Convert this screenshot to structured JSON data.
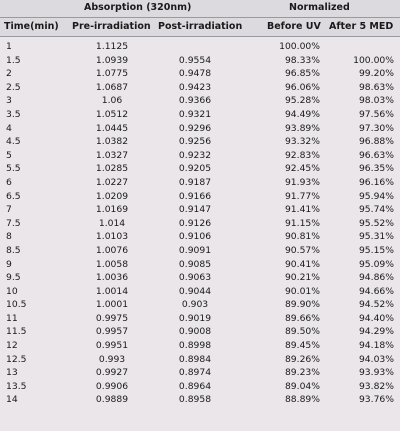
{
  "header": {
    "group_absorption": "Absorption (320nm)",
    "group_normalized": "Normalized",
    "col_time": "Time(min)",
    "col_pre": "Pre-irradiation",
    "col_post": "Post-irradiation",
    "col_before": "Before UV",
    "col_after": "After 5 MED"
  },
  "rows": [
    {
      "time": "1",
      "pre": "1.1125",
      "post": "",
      "before": "100.00%",
      "after": ""
    },
    {
      "time": "1.5",
      "pre": "1.0939",
      "post": "0.9554",
      "before": "98.33%",
      "after": "100.00%"
    },
    {
      "time": "2",
      "pre": "1.0775",
      "post": "0.9478",
      "before": "96.85%",
      "after": "99.20%"
    },
    {
      "time": "2.5",
      "pre": "1.0687",
      "post": "0.9423",
      "before": "96.06%",
      "after": "98.63%"
    },
    {
      "time": "3",
      "pre": "1.06",
      "post": "0.9366",
      "before": "95.28%",
      "after": "98.03%"
    },
    {
      "time": "3.5",
      "pre": "1.0512",
      "post": "0.9321",
      "before": "94.49%",
      "after": "97.56%"
    },
    {
      "time": "4",
      "pre": "1.0445",
      "post": "0.9296",
      "before": "93.89%",
      "after": "97.30%"
    },
    {
      "time": "4.5",
      "pre": "1.0382",
      "post": "0.9256",
      "before": "93.32%",
      "after": "96.88%"
    },
    {
      "time": "5",
      "pre": "1.0327",
      "post": "0.9232",
      "before": "92.83%",
      "after": "96.63%"
    },
    {
      "time": "5.5",
      "pre": "1.0285",
      "post": "0.9205",
      "before": "92.45%",
      "after": "96.35%"
    },
    {
      "time": "6",
      "pre": "1.0227",
      "post": "0.9187",
      "before": "91.93%",
      "after": "96.16%"
    },
    {
      "time": "6.5",
      "pre": "1.0209",
      "post": "0.9166",
      "before": "91.77%",
      "after": "95.94%"
    },
    {
      "time": "7",
      "pre": "1.0169",
      "post": "0.9147",
      "before": "91.41%",
      "after": "95.74%"
    },
    {
      "time": "7.5",
      "pre": "1.014",
      "post": "0.9126",
      "before": "91.15%",
      "after": "95.52%"
    },
    {
      "time": "8",
      "pre": "1.0103",
      "post": "0.9106",
      "before": "90.81%",
      "after": "95.31%"
    },
    {
      "time": "8.5",
      "pre": "1.0076",
      "post": "0.9091",
      "before": "90.57%",
      "after": "95.15%"
    },
    {
      "time": "9",
      "pre": "1.0058",
      "post": "0.9085",
      "before": "90.41%",
      "after": "95.09%"
    },
    {
      "time": "9.5",
      "pre": "1.0036",
      "post": "0.9063",
      "before": "90.21%",
      "after": "94.86%"
    },
    {
      "time": "10",
      "pre": "1.0014",
      "post": "0.9044",
      "before": "90.01%",
      "after": "94.66%"
    },
    {
      "time": "10.5",
      "pre": "1.0001",
      "post": "0.903",
      "before": "89.90%",
      "after": "94.52%"
    },
    {
      "time": "11",
      "pre": "0.9975",
      "post": "0.9019",
      "before": "89.66%",
      "after": "94.40%"
    },
    {
      "time": "11.5",
      "pre": "0.9957",
      "post": "0.9008",
      "before": "89.50%",
      "after": "94.29%"
    },
    {
      "time": "12",
      "pre": "0.9951",
      "post": "0.8998",
      "before": "89.45%",
      "after": "94.18%"
    },
    {
      "time": "12.5",
      "pre": "0.993",
      "post": "0.8984",
      "before": "89.26%",
      "after": "94.03%"
    },
    {
      "time": "13",
      "pre": "0.9927",
      "post": "0.8974",
      "before": "89.23%",
      "after": "93.93%"
    },
    {
      "time": "13.5",
      "pre": "0.9906",
      "post": "0.8964",
      "before": "89.04%",
      "after": "93.82%"
    },
    {
      "time": "14",
      "pre": "0.9889",
      "post": "0.8958",
      "before": "88.89%",
      "after": "93.76%"
    }
  ]
}
